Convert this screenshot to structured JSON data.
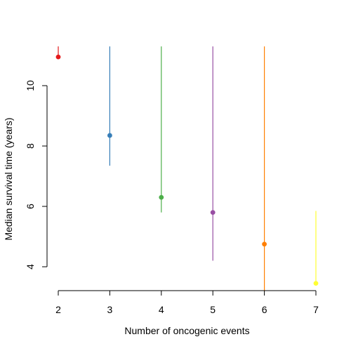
{
  "chart_data": {
    "type": "scatter",
    "title": "",
    "xlabel": "Number of oncogenic events",
    "ylabel": "Median survival time (years)",
    "x_ticks": [
      2,
      3,
      4,
      5,
      6,
      7
    ],
    "x_tick_labels": [
      "2",
      "3",
      "4",
      "5",
      "6",
      "7"
    ],
    "y_ticks": [
      4,
      6,
      8,
      10
    ],
    "y_tick_labels": [
      "4",
      "6",
      "8",
      "10"
    ],
    "xlim": [
      1.95,
      7.05
    ],
    "ylim": [
      3.2,
      11.3
    ],
    "grid": false,
    "legend": "none",
    "series": [
      {
        "color": "#e41a1c",
        "points": [
          {
            "x": 2,
            "y": 10.95,
            "lower": 10.95,
            "upper": 11.3
          }
        ]
      },
      {
        "color": "#377eb8",
        "points": [
          {
            "x": 3,
            "y": 8.35,
            "lower": 7.35,
            "upper": 11.3
          }
        ]
      },
      {
        "color": "#4daf4a",
        "points": [
          {
            "x": 4,
            "y": 6.3,
            "lower": 5.8,
            "upper": 11.3
          }
        ]
      },
      {
        "color": "#984ea3",
        "points": [
          {
            "x": 5,
            "y": 5.8,
            "lower": 4.2,
            "upper": 11.3
          }
        ]
      },
      {
        "color": "#ff7f00",
        "points": [
          {
            "x": 6,
            "y": 4.75,
            "lower": 3.2,
            "upper": 11.3
          }
        ]
      },
      {
        "color": "#ffff33",
        "points": [
          {
            "x": 7,
            "y": 3.45,
            "lower": 3.45,
            "upper": 5.85
          }
        ]
      }
    ]
  }
}
